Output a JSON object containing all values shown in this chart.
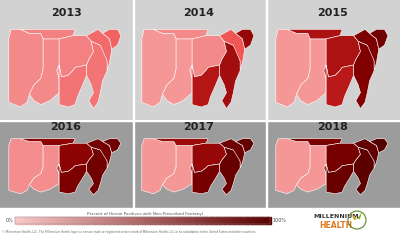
{
  "years": [
    "2013",
    "2014",
    "2015",
    "2016",
    "2017",
    "2018"
  ],
  "colorbar_label": "Percent of Heroin Positives with Non-Prescribed Fentanyl",
  "colorbar_left": "0%",
  "colorbar_right": "100%",
  "footer": "© Millennium Health, LLC. The Millennium Health logo is a service mark or registered service mark of Millennium Health, LLC or its subsidiaries in the United States and other countries.",
  "bg_top_color": "#d4d4d4",
  "bg_bottom_color": "#9a9a9a",
  "footer_bg": "#ffffff",
  "colorbar_colors": [
    "#f8c8c8",
    "#dd2222",
    "#550000"
  ],
  "logo_millennium_color": "#333333",
  "logo_health_color": "#e07820",
  "logo_circle_color": "#5a8a20",
  "panel_intensities": {
    "2013": {
      "west": 0.13,
      "nw": 0.13,
      "sw": 0.13,
      "plains": 0.15,
      "midwest": 0.15,
      "south": 0.18,
      "se": 0.18,
      "ne": 0.2,
      "maine": 0.22
    },
    "2014": {
      "west": 0.1,
      "nw": 0.1,
      "sw": 0.1,
      "plains": 0.13,
      "midwest": 0.13,
      "south": 0.52,
      "se": 0.58,
      "ne": 0.25,
      "maine": 0.62
    },
    "2015": {
      "west": 0.1,
      "nw": 0.1,
      "sw": 0.1,
      "plains": 0.55,
      "midwest": 0.55,
      "south": 0.5,
      "se": 0.7,
      "ne": 0.72,
      "maine": 0.78
    },
    "2016": {
      "west": 0.12,
      "nw": 0.12,
      "sw": 0.12,
      "plains": 0.65,
      "midwest": 0.65,
      "south": 0.72,
      "se": 0.78,
      "ne": 0.75,
      "maine": 0.8
    },
    "2017": {
      "west": 0.1,
      "nw": 0.1,
      "sw": 0.1,
      "plains": 0.6,
      "midwest": 0.62,
      "south": 0.75,
      "se": 0.82,
      "ne": 0.8,
      "maine": 0.85
    },
    "2018": {
      "west": 0.1,
      "nw": 0.1,
      "sw": 0.1,
      "plains": 0.72,
      "midwest": 0.75,
      "south": 0.82,
      "se": 0.88,
      "ne": 0.85,
      "maine": 0.92
    }
  }
}
